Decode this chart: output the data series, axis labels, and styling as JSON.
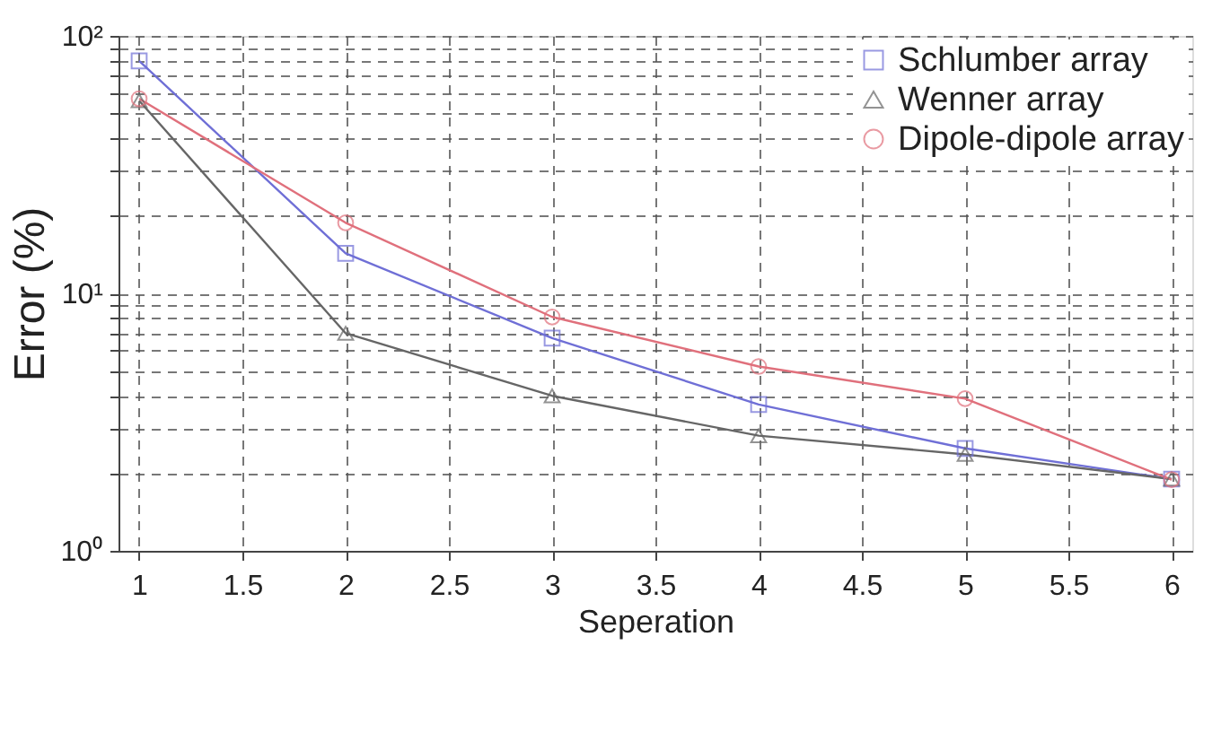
{
  "chart_data": {
    "type": "line",
    "xlabel": "Seperation",
    "ylabel": "Error (%)",
    "x": [
      1,
      2,
      3,
      4,
      5,
      6
    ],
    "series": [
      {
        "name": "Schlumber array",
        "color": "#6f6fd6",
        "marker": "square",
        "values": [
          80,
          14.3,
          6.7,
          3.7,
          2.5,
          1.9
        ]
      },
      {
        "name": "Wenner array",
        "color": "#666666",
        "marker": "triangle",
        "values": [
          56,
          7.0,
          4.0,
          2.8,
          2.37,
          1.9
        ]
      },
      {
        "name": "Dipole-dipole array",
        "color": "#e0707c",
        "marker": "circle",
        "values": [
          57,
          18.8,
          8.1,
          5.2,
          3.9,
          1.89
        ]
      }
    ],
    "xlim": [
      0.9,
      6.1
    ],
    "xticks": [
      1,
      1.5,
      2,
      2.5,
      3,
      3.5,
      4,
      4.5,
      5,
      5.5,
      6
    ],
    "ylim": [
      1,
      100
    ],
    "log": "y",
    "yticks": [
      {
        "value": 1,
        "label": "10⁰"
      },
      {
        "value": 2,
        "label": null
      },
      {
        "value": 3,
        "label": null
      },
      {
        "value": 4,
        "label": null
      },
      {
        "value": 5,
        "label": null
      },
      {
        "value": 6,
        "label": null
      },
      {
        "value": 7,
        "label": null
      },
      {
        "value": 8,
        "label": null
      },
      {
        "value": 9,
        "label": null
      },
      {
        "value": 10,
        "label": "10¹"
      },
      {
        "value": 20,
        "label": null
      },
      {
        "value": 30,
        "label": null
      },
      {
        "value": 40,
        "label": null
      },
      {
        "value": 50,
        "label": null
      },
      {
        "value": 60,
        "label": null
      },
      {
        "value": 70,
        "label": null
      },
      {
        "value": 80,
        "label": null
      },
      {
        "value": 90,
        "label": null
      },
      {
        "value": 100,
        "label": "10²"
      }
    ],
    "grid": true,
    "legend": "top right",
    "line_style": "solid"
  }
}
